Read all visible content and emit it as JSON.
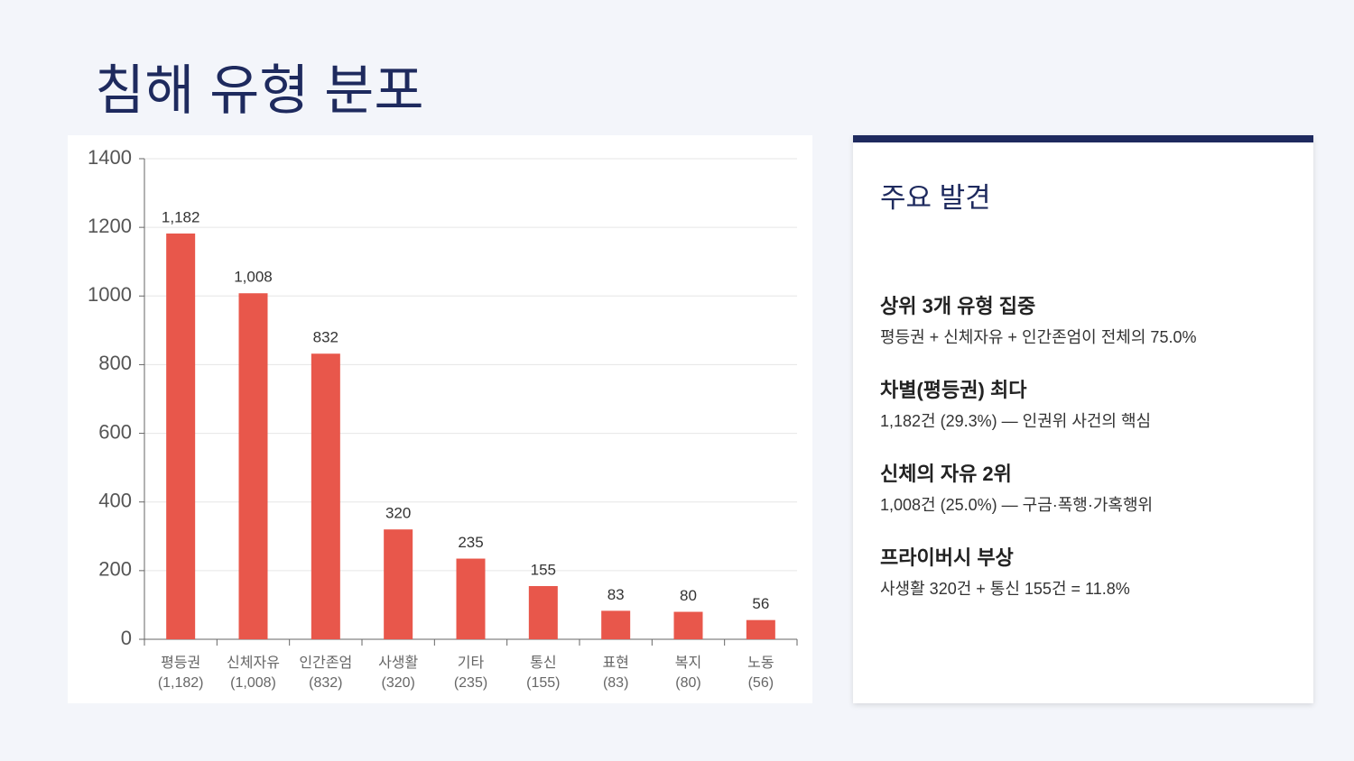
{
  "chart_data": {
    "type": "bar",
    "title": "침해 유형 분포",
    "categories": [
      [
        "평등권",
        "(1,182)"
      ],
      [
        "신체자유",
        "(1,008)"
      ],
      [
        "인간존엄",
        "(832)"
      ],
      [
        "사생활",
        "(320)"
      ],
      [
        "기타",
        "(235)"
      ],
      [
        "통신",
        "(155)"
      ],
      [
        "표현",
        "(83)"
      ],
      [
        "복지",
        "(80)"
      ],
      [
        "노동",
        "(56)"
      ]
    ],
    "values": [
      1182,
      1008,
      832,
      320,
      235,
      155,
      83,
      80,
      56
    ],
    "value_labels": [
      "1,182",
      "1,008",
      "832",
      "320",
      "235",
      "155",
      "83",
      "80",
      "56"
    ],
    "color": "#e8574b",
    "ylim": [
      0,
      1400
    ],
    "yticks": [
      0,
      200,
      400,
      600,
      800,
      1000,
      1200,
      1400
    ],
    "grid": true
  },
  "panel": {
    "title": "주요 발견",
    "items": [
      {
        "heading": "상위 3개 유형 집중",
        "text": "평등권 + 신체자유 + 인간존엄이 전체의 75.0%"
      },
      {
        "heading": "차별(평등권) 최다",
        "text": "1,182건 (29.3%) — 인권위 사건의 핵심"
      },
      {
        "heading": "신체의 자유 2위",
        "text": "1,008건 (25.0%) — 구금·폭행·가혹행위"
      },
      {
        "heading": "프라이버시 부상",
        "text": "사생활 320건 + 통신 155건 = 11.8%"
      }
    ]
  }
}
